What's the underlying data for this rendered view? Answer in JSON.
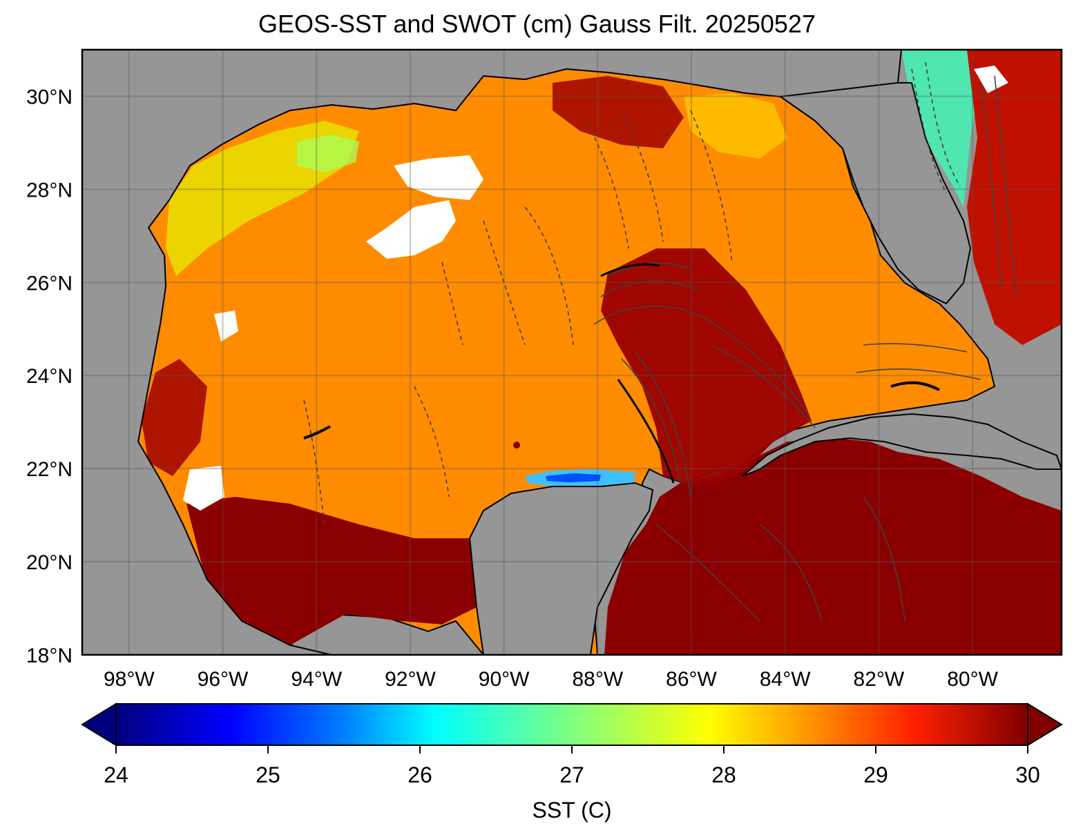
{
  "title": "GEOS-SST  and SWOT (cm) Gauss Filt. 20250527",
  "map": {
    "lon_range": [
      -99,
      -78.1
    ],
    "lat_range": [
      18,
      31
    ],
    "lat_ticks": [
      30,
      28,
      26,
      24,
      22,
      20,
      18
    ],
    "lat_tick_labels": [
      "30°N",
      "28°N",
      "26°N",
      "24°N",
      "22°N",
      "20°N",
      "18°N"
    ],
    "lon_ticks": [
      -98,
      -96,
      -94,
      -92,
      -90,
      -88,
      -86,
      -84,
      -82,
      -80
    ],
    "lon_tick_labels": [
      "98°W",
      "96°W",
      "94°W",
      "92°W",
      "90°W",
      "88°W",
      "86°W",
      "84°W",
      "82°W",
      "80°W"
    ],
    "grid": true,
    "land_color": "#969696",
    "field": "sea surface temperature with SWOT sea-level contours"
  },
  "colorbar": {
    "label": "SST (C)",
    "min": 24,
    "max": 30,
    "ticks": [
      24,
      25,
      26,
      27,
      28,
      29,
      30
    ],
    "tick_labels": [
      "24",
      "25",
      "26",
      "27",
      "28",
      "29",
      "30"
    ],
    "colormap": "jet",
    "extend": "both"
  }
}
